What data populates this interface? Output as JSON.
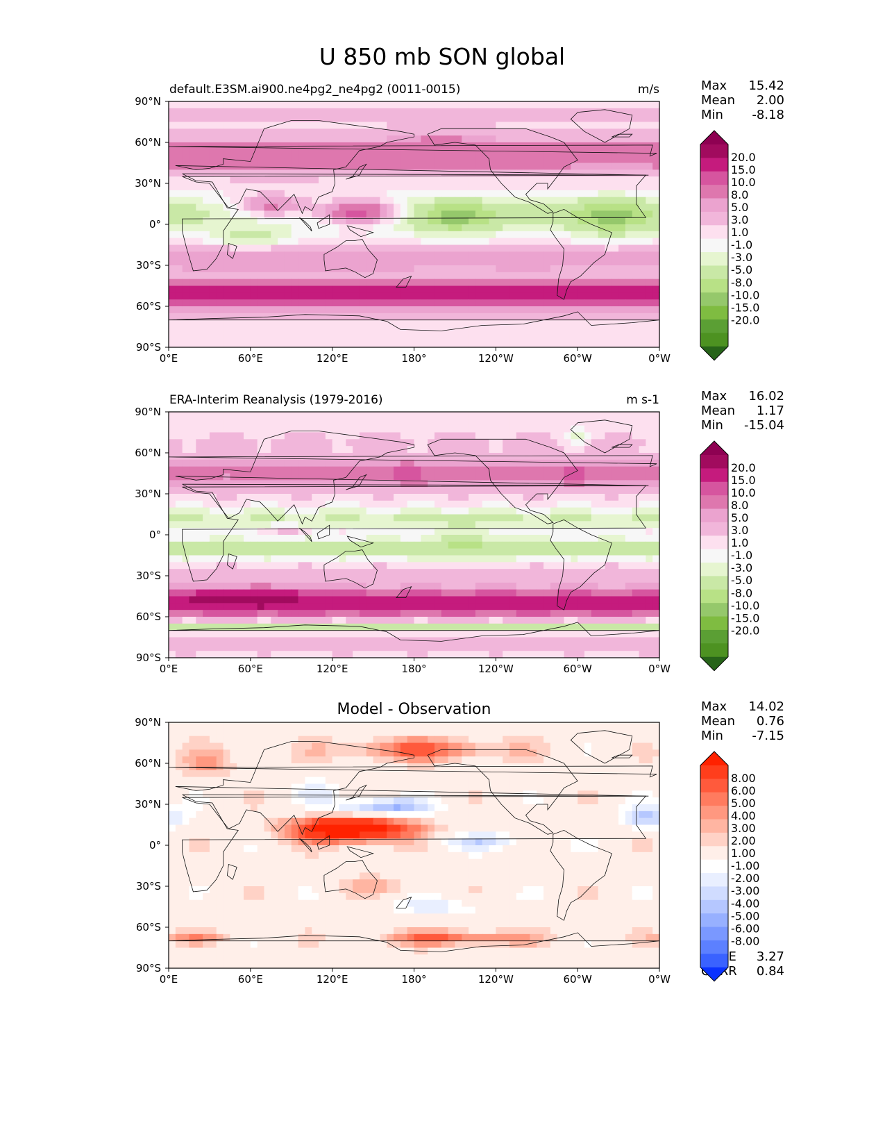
{
  "figure": {
    "title": "U 850 mb SON global"
  },
  "chart_data": [
    {
      "type": "heatmap",
      "title": "",
      "left_title": "default.E3SM.ai900.ne4pg2_ne4pg2 (0011-0015)",
      "units": "m/s",
      "xlabel": "",
      "ylabel": "",
      "xlim": [
        0,
        360
      ],
      "ylim": [
        -90,
        90
      ],
      "x_ticks": [
        "0°E",
        "60°E",
        "120°E",
        "180°",
        "120°W",
        "60°W",
        "0°W"
      ],
      "y_ticks": [
        "90°N",
        "60°N",
        "30°N",
        "0°",
        "30°S",
        "60°S",
        "90°S"
      ],
      "stats": [
        {
          "label": "Max",
          "value": "15.42"
        },
        {
          "label": "Mean",
          "value": "2.00"
        },
        {
          "label": "Min",
          "value": "-8.18"
        }
      ],
      "colorbar": {
        "labels": [
          "20.0",
          "15.0",
          "10.0",
          "8.0",
          "5.0",
          "3.0",
          "1.0",
          "-1.0",
          "-3.0",
          "-5.0",
          "-8.0",
          "-10.0",
          "-15.0",
          "-20.0"
        ],
        "colors": [
          "#8e0152",
          "#a10b5e",
          "#c51b7d",
          "#d6559f",
          "#de77ae",
          "#eba3cf",
          "#f1b6da",
          "#fde0ef",
          "#f7f7f7",
          "#e6f5d0",
          "#c9e8a6",
          "#b8e186",
          "#95c86b",
          "#7fbc41",
          "#5b9f34",
          "#4d9221",
          "#276419"
        ]
      },
      "field": "u850_model"
    },
    {
      "type": "heatmap",
      "title": "",
      "left_title": "ERA-Interim Reanalysis (1979-2016)",
      "units": "m s-1",
      "xlabel": "",
      "ylabel": "",
      "xlim": [
        0,
        360
      ],
      "ylim": [
        -90,
        90
      ],
      "x_ticks": [
        "0°E",
        "60°E",
        "120°E",
        "180°",
        "120°W",
        "60°W",
        "0°W"
      ],
      "y_ticks": [
        "90°N",
        "60°N",
        "30°N",
        "0°",
        "30°S",
        "60°S",
        "90°S"
      ],
      "stats": [
        {
          "label": "Max",
          "value": "16.02"
        },
        {
          "label": "Mean",
          "value": "1.17"
        },
        {
          "label": "Min",
          "value": "-15.04"
        }
      ],
      "colorbar": {
        "labels": [
          "20.0",
          "15.0",
          "10.0",
          "8.0",
          "5.0",
          "3.0",
          "1.0",
          "-1.0",
          "-3.0",
          "-5.0",
          "-8.0",
          "-10.0",
          "-15.0",
          "-20.0"
        ],
        "colors": [
          "#8e0152",
          "#a10b5e",
          "#c51b7d",
          "#d6559f",
          "#de77ae",
          "#eba3cf",
          "#f1b6da",
          "#fde0ef",
          "#f7f7f7",
          "#e6f5d0",
          "#c9e8a6",
          "#b8e186",
          "#95c86b",
          "#7fbc41",
          "#5b9f34",
          "#4d9221",
          "#276419"
        ]
      },
      "field": "u850_obs"
    },
    {
      "type": "heatmap",
      "title": "Model - Observation",
      "left_title": "",
      "units": "",
      "xlabel": "",
      "ylabel": "",
      "xlim": [
        0,
        360
      ],
      "ylim": [
        -90,
        90
      ],
      "x_ticks": [
        "0°E",
        "60°E",
        "120°E",
        "180°",
        "120°W",
        "60°W",
        "0°W"
      ],
      "y_ticks": [
        "90°N",
        "60°N",
        "30°N",
        "0°",
        "30°S",
        "60°S",
        "90°S"
      ],
      "stats": [
        {
          "label": "Max",
          "value": "14.02"
        },
        {
          "label": "Mean",
          "value": "0.76"
        },
        {
          "label": "Min",
          "value": "-7.15"
        }
      ],
      "extra_stats": [
        {
          "label": "RMSE",
          "value": "3.27"
        },
        {
          "label": "CORR",
          "value": "0.84"
        }
      ],
      "colorbar": {
        "labels": [
          "8.00",
          "6.00",
          "5.00",
          "4.00",
          "3.00",
          "2.00",
          "1.00",
          "-1.00",
          "-2.00",
          "-3.00",
          "-4.00",
          "-5.00",
          "-6.00",
          "-8.00"
        ],
        "colors": [
          "#ff2200",
          "#ff3e1c",
          "#ff5a3c",
          "#ff7b5f",
          "#ff9880",
          "#ffb5a2",
          "#ffd2c6",
          "#ffefe9",
          "#ffffff",
          "#e9efff",
          "#d0dcff",
          "#b5c7ff",
          "#97b0ff",
          "#7a98ff",
          "#5c80ff",
          "#3a62ff",
          "#0a32ff"
        ]
      },
      "field": "u850_diff"
    }
  ]
}
